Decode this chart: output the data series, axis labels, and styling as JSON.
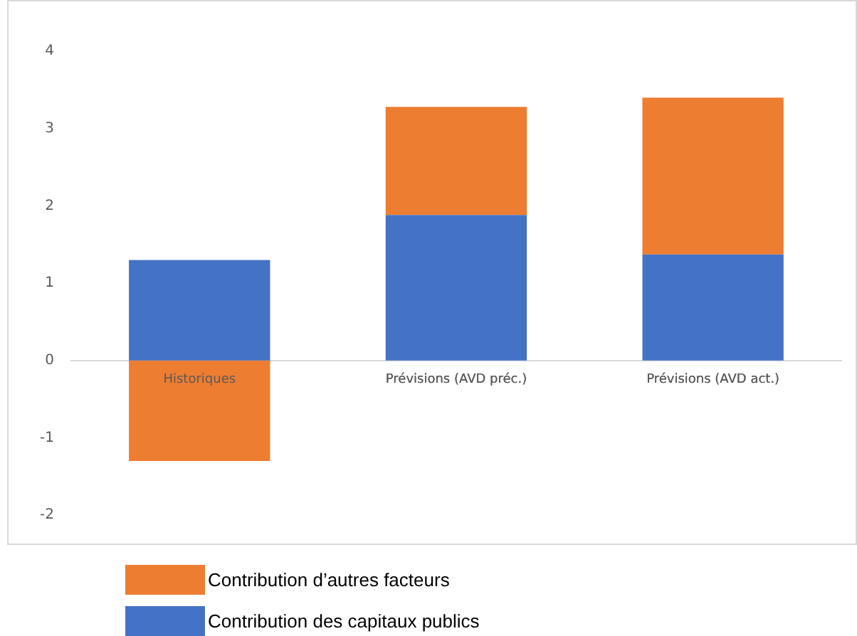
{
  "chart_data": {
    "type": "bar",
    "stacked": true,
    "categories": [
      "Historiques",
      "Prévisions (AVD préc.)",
      "Prévisions (AVD act.)"
    ],
    "series": [
      {
        "name": "Contribution des capitaux publics",
        "color": "#4472c4",
        "values": [
          1.3,
          1.88,
          1.37
        ]
      },
      {
        "name": "Contribution d’autres facteurs",
        "color": "#ed7d31",
        "values": [
          -1.3,
          1.4,
          2.03
        ]
      }
    ],
    "ylim": [
      -2,
      4
    ],
    "yticks": [
      -2,
      -1,
      0,
      1,
      2,
      3,
      4
    ],
    "grid": false,
    "legend": "bottom left"
  }
}
